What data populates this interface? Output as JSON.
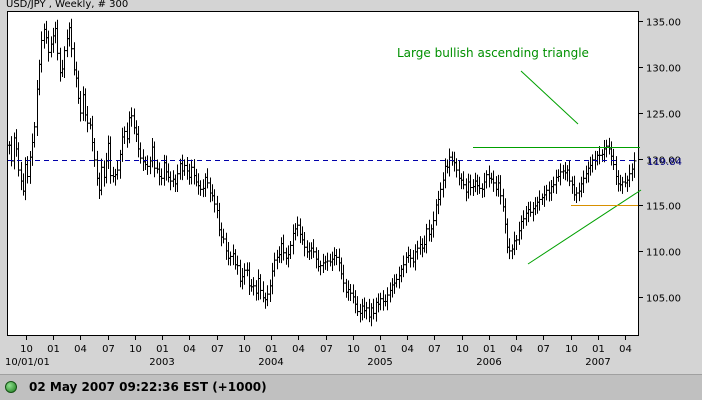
{
  "chart_data": {
    "type": "line",
    "title": "USD/JPY , Weekly, # 300",
    "annotation": "Large bullish ascending triangle",
    "ylim": [
      101,
      137
    ],
    "y_ticks": [
      "105.00",
      "110.00",
      "115.00",
      "120.00",
      "125.00",
      "130.00",
      "135.00"
    ],
    "last_price_label": "119.84",
    "last_price": 119.84,
    "x_month_ticks": [
      "10",
      "01",
      "04",
      "07",
      "10",
      "01",
      "04",
      "07",
      "10",
      "01",
      "04",
      "07",
      "10",
      "01",
      "04",
      "07",
      "10",
      "01",
      "04",
      "07",
      "10",
      "01",
      "04"
    ],
    "x_year_labels": [
      "10/01/01",
      "2003",
      "2004",
      "2005",
      "2006",
      "2007"
    ],
    "weekly_close_series": [
      121.5,
      119.8,
      122.3,
      121.1,
      118.8,
      117.6,
      116.5,
      119.4,
      118.1,
      120.2,
      121.8,
      123.5,
      127.6,
      130.3,
      132.9,
      134.1,
      133.2,
      131.6,
      132.5,
      133.4,
      134.2,
      131.5,
      129.4,
      129.8,
      131.8,
      133.1,
      134.3,
      132.0,
      129.7,
      128.8,
      126.6,
      125.0,
      127.0,
      124.8,
      123.9,
      123.7,
      121.8,
      119.9,
      117.9,
      116.6,
      119.1,
      118.0,
      119.8,
      121.7,
      118.2,
      118.1,
      118.3,
      118.8,
      120.5,
      122.4,
      123.0,
      122.2,
      124.5,
      124.7,
      123.4,
      122.7,
      121.1,
      120.1,
      119.7,
      119.4,
      119.2,
      119.8,
      121.3,
      119.0,
      118.9,
      118.1,
      117.9,
      119.6,
      118.6,
      118.0,
      117.6,
      117.8,
      117.3,
      118.4,
      119.5,
      118.7,
      119.3,
      118.7,
      118.0,
      119.1,
      118.2,
      117.5,
      117.1,
      116.7,
      116.8,
      118.0,
      117.4,
      116.3,
      116.0,
      115.1,
      114.4,
      112.3,
      111.5,
      111.3,
      110.0,
      109.2,
      109.4,
      109.7,
      108.5,
      108.4,
      106.7,
      107.2,
      107.9,
      107.9,
      106.2,
      106.1,
      106.2,
      105.4,
      107.0,
      105.7,
      104.9,
      104.7,
      105.3,
      106.2,
      107.8,
      109.0,
      109.3,
      109.6,
      110.8,
      109.8,
      109.2,
      109.6,
      110.6,
      111.9,
      112.4,
      112.8,
      111.8,
      111.2,
      110.4,
      109.9,
      110.0,
      110.3,
      109.9,
      109.1,
      108.3,
      108.4,
      108.7,
      108.8,
      108.9,
      108.8,
      109.1,
      109.5,
      109.3,
      108.7,
      107.5,
      106.5,
      105.5,
      105.8,
      105.4,
      105.0,
      104.2,
      103.4,
      103.2,
      104.0,
      103.5,
      103.8,
      102.8,
      103.8,
      103.2,
      104.4,
      104.2,
      104.8,
      104.5,
      104.5,
      105.2,
      105.7,
      106.3,
      106.5,
      106.9,
      107.3,
      108.0,
      108.5,
      109.3,
      109.5,
      109.2,
      108.8,
      109.9,
      110.3,
      110.7,
      110.3,
      110.7,
      112.4,
      111.8,
      112.4,
      113.3,
      115.0,
      115.6,
      116.7,
      117.7,
      119.2,
      119.1,
      120.2,
      119.8,
      119.6,
      118.8,
      117.9,
      117.7,
      117.2,
      116.4,
      117.5,
      116.9,
      117.0,
      117.6,
      117.1,
      116.8,
      116.7,
      117.5,
      118.3,
      117.9,
      117.8,
      117.4,
      116.7,
      117.4,
      116.0,
      114.8,
      112.9,
      110.4,
      110.0,
      110.2,
      111.1,
      111.2,
      112.2,
      113.2,
      113.5,
      114.1,
      114.5,
      114.2,
      114.6,
      114.9,
      115.3,
      115.6,
      115.8,
      116.1,
      116.6,
      116.3,
      117.0,
      117.2,
      118.0,
      118.1,
      118.6,
      118.7,
      118.5,
      118.8,
      117.6,
      117.2,
      116.1,
      116.3,
      116.5,
      117.3,
      117.9,
      118.4,
      119.0,
      119.3,
      119.9,
      119.8,
      120.4,
      120.4,
      120.5,
      121.1,
      121.4,
      121.1,
      120.3,
      119.4,
      118.1,
      117.3,
      117.2,
      117.5,
      117.4,
      117.7,
      118.4,
      118.9,
      119.8
    ]
  },
  "status": {
    "text": "02 May 2007 09:22:36  EST (+1000)"
  }
}
